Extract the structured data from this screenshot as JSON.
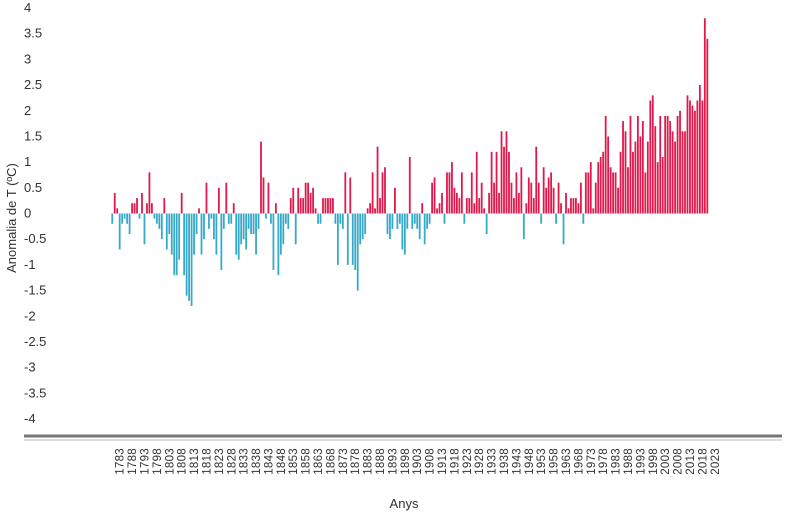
{
  "chart_data": {
    "type": "bar",
    "title": "",
    "xlabel": "Anys",
    "ylabel": "Anomalia de T (ºC)",
    "ylim": [
      -4,
      4
    ],
    "yticks": [
      "4",
      "3.5",
      "3",
      "2.5",
      "2",
      "1.5",
      "1",
      "0.5",
      "0",
      "-0.5",
      "-1",
      "-1.5",
      "-2",
      "-2.5",
      "-3",
      "-3.5",
      "-4"
    ],
    "xticks": [
      "1783",
      "1788",
      "1793",
      "1798",
      "1803",
      "1808",
      "1813",
      "1818",
      "1823",
      "1828",
      "1833",
      "1838",
      "1843",
      "1848",
      "1853",
      "1858",
      "1863",
      "1868",
      "1873",
      "1878",
      "1883",
      "1888",
      "1893",
      "1898",
      "1903",
      "1908",
      "1913",
      "1918",
      "1923",
      "1928",
      "1933",
      "1938",
      "1943",
      "1948",
      "1953",
      "1958",
      "1963",
      "1968",
      "1973",
      "1978",
      "1983",
      "1988",
      "1993",
      "1998",
      "2003",
      "2008",
      "2013",
      "2018",
      "2023"
    ],
    "x_start": 1780,
    "x_end": 2024,
    "grid": false,
    "colors": {
      "positive": "#e0184c",
      "negative": "#36a9c9"
    },
    "values": [
      -0.2,
      0.4,
      0.1,
      -0.7,
      -0.2,
      -0.1,
      -0.2,
      -0.4,
      0.2,
      0.2,
      0.3,
      -0.1,
      0.4,
      -0.6,
      0.2,
      0.8,
      0.2,
      -0.1,
      -0.2,
      -0.3,
      -0.5,
      0.3,
      -0.7,
      -0.4,
      -0.8,
      -1.2,
      -1.2,
      -0.9,
      0.4,
      -1.2,
      -1.6,
      -1.7,
      -1.8,
      -0.8,
      -0.4,
      0.1,
      -0.8,
      -0.5,
      0.6,
      -0.3,
      -0.1,
      -0.5,
      -0.8,
      0.5,
      -1.1,
      -0.3,
      0.6,
      -0.2,
      -0.2,
      0.2,
      -0.8,
      -0.9,
      -0.6,
      -0.5,
      -0.7,
      -0.3,
      -0.4,
      -0.4,
      -0.8,
      -0.3,
      1.4,
      0.7,
      -0.1,
      0.6,
      -0.2,
      -1.1,
      0.2,
      -1.2,
      -0.8,
      -0.6,
      -0.2,
      -0.3,
      0.3,
      0.5,
      -0.6,
      0.5,
      0.3,
      0.3,
      0.6,
      0.6,
      0.4,
      0.5,
      0.1,
      -0.2,
      -0.2,
      0.3,
      0.3,
      0.3,
      0.3,
      0.3,
      -0.2,
      -1.0,
      -0.2,
      -0.3,
      0.8,
      -1.0,
      0.7,
      -1.0,
      -1.1,
      -1.5,
      -0.6,
      -0.5,
      -0.4,
      0.1,
      0.2,
      0.8,
      0.1,
      1.3,
      0.3,
      0.8,
      0.9,
      -0.4,
      -0.5,
      -0.3,
      0.5,
      -0.3,
      -0.2,
      -0.7,
      -0.8,
      -0.3,
      1.1,
      -0.3,
      -0.2,
      -0.3,
      -0.5,
      0.2,
      -0.6,
      -0.3,
      -0.2,
      0.6,
      0.7,
      0.1,
      0.2,
      0.4,
      -0.2,
      0.8,
      0.8,
      1.0,
      0.5,
      0.4,
      0.3,
      0.8,
      -0.2,
      0.3,
      0.3,
      0.8,
      0.2,
      1.2,
      0.3,
      0.6,
      0.1,
      -0.4,
      0.4,
      1.2,
      0.6,
      1.2,
      0.4,
      1.6,
      1.3,
      1.6,
      1.2,
      0.6,
      0.3,
      0.8,
      0.4,
      0.9,
      -0.5,
      0.2,
      0.7,
      0.6,
      0.3,
      1.3,
      0.6,
      -0.2,
      0.9,
      0.5,
      0.7,
      0.8,
      0.5,
      -0.2,
      0.6,
      0.2,
      -0.6,
      0.4,
      0.1,
      0.3,
      0.3,
      0.3,
      0.2,
      0.6,
      -0.2,
      0.8,
      0.8,
      1.0,
      0.1,
      0.6,
      1.0,
      1.1,
      1.2,
      1.9,
      1.5,
      0.9,
      0.8,
      0.8,
      0.5,
      1.2,
      1.8,
      1.6,
      0.9,
      1.9,
      1.2,
      1.4,
      1.9,
      1.5,
      1.8,
      0.8,
      1.4,
      2.2,
      2.3,
      1.7,
      1.0,
      1.9,
      1.1,
      1.9,
      1.9,
      1.8,
      1.6,
      1.4,
      1.9,
      2.0,
      1.6,
      1.6,
      2.3,
      2.2,
      2.1,
      2.0,
      2.2,
      2.5,
      2.2,
      3.8,
      3.4
    ]
  }
}
